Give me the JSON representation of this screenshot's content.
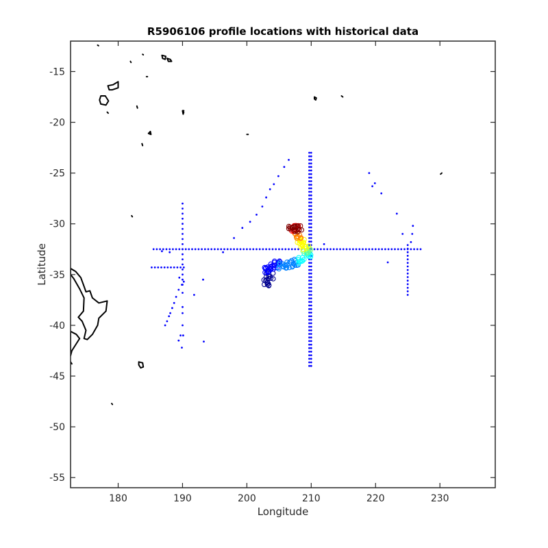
{
  "chart_data": {
    "type": "scatter",
    "title": "R5906106 profile locations with historical data",
    "xlabel": "Longitude",
    "ylabel": "Latitude",
    "xlim": [
      172.6,
      238.6
    ],
    "ylim": [
      -56.0,
      -12.0
    ],
    "xticks": [
      180,
      190,
      200,
      210,
      220,
      230
    ],
    "yticks": [
      -55,
      -50,
      -45,
      -40,
      -35,
      -30,
      -25,
      -20,
      -15
    ],
    "grid": false,
    "colors": {
      "historical": "#0000ff",
      "coastline": "#000000",
      "axes": "#262626",
      "colormap": [
        "#00008f",
        "#0000ff",
        "#0080ff",
        "#00ffff",
        "#80ff80",
        "#ffff00",
        "#ff8000",
        "#ff0000",
        "#800000"
      ]
    },
    "historical_points": {
      "lat_line_west": {
        "lon_range": [
          185.5,
          227.0
        ],
        "step": 0.5,
        "lat": -32.5
      },
      "lat_line_secondary": {
        "lon_range": [
          185.2,
          190.5
        ],
        "step": 0.5,
        "lat": -34.3
      },
      "lon_line_190": {
        "lat_range": [
          -36.0,
          -28.0
        ],
        "step": 0.5,
        "lon": 190.0
      },
      "lon_line_210a": {
        "lat_range": [
          -44.0,
          -23.0
        ],
        "step": 0.35,
        "lon": 209.7
      },
      "lon_line_210b": {
        "lat_range": [
          -44.0,
          -23.0
        ],
        "step": 0.35,
        "lon": 210.0
      },
      "lon_line_225": {
        "lat_range": [
          -37.0,
          -32.0
        ],
        "step": 0.35,
        "lon": 225.0
      },
      "scatter": [
        [
          206.5,
          -23.7
        ],
        [
          205.8,
          -24.4
        ],
        [
          204.9,
          -25.3
        ],
        [
          204.2,
          -26.1
        ],
        [
          203.6,
          -26.6
        ],
        [
          203.0,
          -27.4
        ],
        [
          202.4,
          -28.3
        ],
        [
          201.5,
          -29.1
        ],
        [
          200.5,
          -29.8
        ],
        [
          199.3,
          -30.4
        ],
        [
          198.0,
          -31.4
        ],
        [
          196.3,
          -32.8
        ],
        [
          188.0,
          -32.8
        ],
        [
          186.8,
          -32.7
        ],
        [
          219.0,
          -25.0
        ],
        [
          219.5,
          -26.3
        ],
        [
          219.9,
          -26.0
        ],
        [
          220.9,
          -27.0
        ],
        [
          223.3,
          -29.0
        ],
        [
          224.2,
          -31.0
        ],
        [
          225.5,
          -31.8
        ],
        [
          225.7,
          -31.0
        ],
        [
          225.8,
          -30.2
        ],
        [
          221.9,
          -33.8
        ],
        [
          212.0,
          -32.0
        ],
        [
          189.5,
          -35.3
        ],
        [
          190.2,
          -35.7
        ],
        [
          189.9,
          -36.0
        ],
        [
          189.4,
          -36.5
        ],
        [
          189.0,
          -37.2
        ],
        [
          188.7,
          -37.8
        ],
        [
          188.4,
          -38.3
        ],
        [
          188.1,
          -38.8
        ],
        [
          187.9,
          -39.1
        ],
        [
          187.6,
          -39.6
        ],
        [
          187.3,
          -40.0
        ],
        [
          190.0,
          -40.0
        ],
        [
          189.7,
          -41.0
        ],
        [
          190.1,
          -41.0
        ],
        [
          189.4,
          -41.5
        ],
        [
          189.9,
          -42.2
        ],
        [
          193.3,
          -41.6
        ],
        [
          193.2,
          -35.5
        ],
        [
          191.8,
          -37.0
        ],
        [
          190.0,
          -38.2
        ],
        [
          190.0,
          -38.8
        ],
        [
          190.0,
          -36.8
        ]
      ]
    },
    "float_track": {
      "lon_range": [
        202.5,
        210.2
      ],
      "lat_range": [
        -36.2,
        -30.0
      ],
      "color_by": "profile order (early=dark blue, late=dark red)",
      "clusters": [
        {
          "lon": 203.2,
          "lat": -35.8,
          "color_index": 0
        },
        {
          "lon": 203.5,
          "lat": -35.2,
          "color_index": 0
        },
        {
          "lon": 203.3,
          "lat": -34.6,
          "color_index": 1
        },
        {
          "lon": 203.8,
          "lat": -34.2,
          "color_index": 1
        },
        {
          "lon": 204.6,
          "lat": -34.0,
          "color_index": 1
        },
        {
          "lon": 205.6,
          "lat": -34.2,
          "color_index": 2
        },
        {
          "lon": 206.6,
          "lat": -34.0,
          "color_index": 2
        },
        {
          "lon": 207.6,
          "lat": -33.8,
          "color_index": 2
        },
        {
          "lon": 208.6,
          "lat": -33.6,
          "color_index": 3
        },
        {
          "lon": 209.4,
          "lat": -33.2,
          "color_index": 3
        },
        {
          "lon": 209.3,
          "lat": -32.6,
          "color_index": 4
        },
        {
          "lon": 209.0,
          "lat": -32.2,
          "color_index": 5
        },
        {
          "lon": 208.4,
          "lat": -31.6,
          "color_index": 5
        },
        {
          "lon": 207.9,
          "lat": -31.1,
          "color_index": 6
        },
        {
          "lon": 207.5,
          "lat": -30.5,
          "color_index": 7
        },
        {
          "lon": 207.0,
          "lat": -30.4,
          "color_index": 8
        },
        {
          "lon": 208.0,
          "lat": -30.5,
          "color_index": 8
        }
      ]
    },
    "land": [
      {
        "name": "north-island-nz",
        "points": [
          [
            172.6,
            -34.4
          ],
          [
            173.4,
            -34.7
          ],
          [
            174.2,
            -35.3
          ],
          [
            174.6,
            -36.0
          ],
          [
            175.0,
            -36.7
          ],
          [
            175.6,
            -36.6
          ],
          [
            176.0,
            -37.3
          ],
          [
            177.0,
            -37.8
          ],
          [
            178.3,
            -37.6
          ],
          [
            178.1,
            -38.6
          ],
          [
            177.0,
            -39.3
          ],
          [
            176.8,
            -40.0
          ],
          [
            176.0,
            -40.9
          ],
          [
            175.2,
            -41.4
          ],
          [
            174.7,
            -41.3
          ],
          [
            175.0,
            -40.5
          ],
          [
            174.4,
            -39.6
          ],
          [
            173.8,
            -39.2
          ],
          [
            174.6,
            -38.6
          ],
          [
            174.7,
            -37.3
          ],
          [
            174.0,
            -36.4
          ],
          [
            173.1,
            -35.4
          ],
          [
            172.6,
            -35.0
          ]
        ]
      },
      {
        "name": "south-island-nz-tip",
        "points": [
          [
            172.6,
            -40.6
          ],
          [
            173.5,
            -40.9
          ],
          [
            174.0,
            -41.3
          ],
          [
            173.5,
            -41.8
          ],
          [
            172.8,
            -42.5
          ],
          [
            172.6,
            -43.0
          ]
        ]
      },
      {
        "name": "chatham-islands",
        "points": [
          [
            183.2,
            -43.6
          ],
          [
            183.8,
            -43.7
          ],
          [
            183.9,
            -44.1
          ],
          [
            183.5,
            -44.2
          ],
          [
            183.2,
            -43.9
          ]
        ]
      },
      {
        "name": "fiji-viti-levu",
        "points": [
          [
            177.3,
            -17.4
          ],
          [
            178.0,
            -17.4
          ],
          [
            178.5,
            -17.9
          ],
          [
            178.1,
            -18.3
          ],
          [
            177.3,
            -18.2
          ],
          [
            177.1,
            -17.8
          ]
        ]
      },
      {
        "name": "fiji-vanua-levu",
        "points": [
          [
            178.4,
            -16.4
          ],
          [
            179.2,
            -16.3
          ],
          [
            180.0,
            -16.0
          ],
          [
            180.0,
            -16.6
          ],
          [
            179.1,
            -16.8
          ],
          [
            178.6,
            -16.8
          ]
        ]
      },
      {
        "name": "tonga-tongatapu",
        "points": [
          [
            184.7,
            -21.1
          ],
          [
            185.0,
            -20.9
          ],
          [
            185.1,
            -21.2
          ]
        ]
      },
      {
        "name": "samoa-upolu",
        "points": [
          [
            187.6,
            -13.7
          ],
          [
            188.1,
            -13.8
          ],
          [
            188.3,
            -14.0
          ],
          [
            187.8,
            -14.0
          ]
        ]
      },
      {
        "name": "samoa-savaii",
        "points": [
          [
            186.8,
            -13.4
          ],
          [
            187.4,
            -13.5
          ],
          [
            187.3,
            -13.8
          ],
          [
            186.9,
            -13.7
          ]
        ]
      },
      {
        "name": "niue",
        "points": [
          [
            190.0,
            -18.9
          ],
          [
            190.2,
            -19.0
          ],
          [
            190.1,
            -19.2
          ]
        ]
      },
      {
        "name": "cook-aitutaki",
        "points": [
          [
            190.0,
            -18.85
          ],
          [
            190.2,
            -18.85
          ]
        ]
      },
      {
        "name": "cook-rarotonga",
        "points": [
          [
            200.0,
            -21.2
          ],
          [
            200.2,
            -21.2
          ]
        ]
      },
      {
        "name": "tahiti",
        "points": [
          [
            210.5,
            -17.5
          ],
          [
            210.8,
            -17.6
          ],
          [
            210.7,
            -17.8
          ],
          [
            210.5,
            -17.7
          ]
        ]
      },
      {
        "name": "mehetia",
        "points": [
          [
            214.7,
            -17.4
          ],
          [
            214.9,
            -17.5
          ]
        ]
      },
      {
        "name": "rapa-island",
        "points": [
          [
            230.1,
            -25.1
          ],
          [
            230.3,
            -25.0
          ]
        ]
      },
      {
        "name": "raoul-island",
        "points": [
          [
            182.1,
            -29.2
          ],
          [
            182.2,
            -29.3
          ]
        ]
      },
      {
        "name": "tokelau",
        "points": [
          [
            176.8,
            -12.4
          ],
          [
            176.95,
            -12.45
          ]
        ]
      },
      {
        "name": "wallis",
        "points": [
          [
            183.8,
            -13.3
          ],
          [
            183.9,
            -13.35
          ]
        ]
      },
      {
        "name": "islet-15",
        "points": [
          [
            184.4,
            -15.5
          ],
          [
            184.55,
            -15.5
          ]
        ]
      },
      {
        "name": "islet-14",
        "points": [
          [
            181.9,
            -14.0
          ],
          [
            182.0,
            -14.1
          ]
        ]
      },
      {
        "name": "islet-18",
        "points": [
          [
            182.9,
            -18.4
          ],
          [
            183.0,
            -18.6
          ]
        ]
      },
      {
        "name": "islet-19",
        "points": [
          [
            178.3,
            -19.0
          ],
          [
            178.45,
            -19.1
          ]
        ]
      },
      {
        "name": "islet-22",
        "points": [
          [
            183.7,
            -22.1
          ],
          [
            183.8,
            -22.3
          ]
        ]
      },
      {
        "name": "bounty",
        "points": [
          [
            179.0,
            -47.7
          ],
          [
            179.1,
            -47.8
          ]
        ]
      },
      {
        "name": "islet-43b",
        "points": [
          [
            172.6,
            -43.6
          ],
          [
            172.8,
            -43.8
          ]
        ]
      }
    ]
  }
}
